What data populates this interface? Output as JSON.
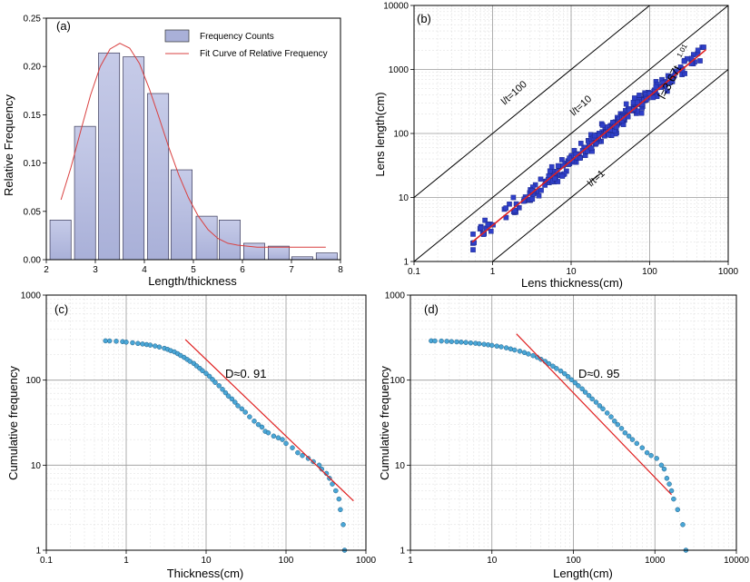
{
  "chart_data": [
    {
      "panel_label": "(a)",
      "type": "bar",
      "xlabel": "Length/thickness",
      "ylabel": "Relative Frequency",
      "xlim": [
        2,
        8
      ],
      "ylim": [
        0,
        0.25
      ],
      "x_ticks": [
        "2",
        "3",
        "4",
        "5",
        "6",
        "7",
        "8"
      ],
      "y_ticks": [
        "0.00",
        "0.05",
        "0.10",
        "0.15",
        "0.20",
        "0.25"
      ],
      "bar_width": 0.43,
      "bar_color": "#a9b0d8",
      "curve_color": "#d94040",
      "legend_position": "top-right",
      "series": [
        {
          "name": "Frequency Counts",
          "type": "bar",
          "x": [
            2.29,
            2.79,
            3.28,
            3.78,
            4.28,
            4.76,
            5.27,
            5.74,
            6.24,
            6.74,
            7.22,
            7.72
          ],
          "values": [
            0.041,
            0.138,
            0.214,
            0.21,
            0.172,
            0.093,
            0.045,
            0.041,
            0.017,
            0.014,
            0.003,
            0.007
          ]
        },
        {
          "name": "Fit Curve of Relative Frequency",
          "type": "line",
          "x": [
            2.3,
            2.5,
            2.7,
            2.9,
            3.1,
            3.3,
            3.5,
            3.7,
            3.9,
            4.1,
            4.3,
            4.5,
            4.7,
            4.9,
            5.1,
            5.3,
            5.5,
            5.7,
            5.9,
            6.1,
            6.3,
            6.5,
            6.8,
            7.1,
            7.4,
            7.7
          ],
          "values": [
            0.062,
            0.095,
            0.133,
            0.17,
            0.2,
            0.218,
            0.224,
            0.219,
            0.203,
            0.177,
            0.147,
            0.116,
            0.088,
            0.064,
            0.045,
            0.031,
            0.022,
            0.017,
            0.015,
            0.014,
            0.013,
            0.013,
            0.013,
            0.013,
            0.013,
            0.013
          ]
        }
      ]
    },
    {
      "panel_label": "(b)",
      "type": "scatter",
      "xscale": "log",
      "yscale": "log",
      "xlabel": "Lens thickness(cm)",
      "ylabel": "Lens length(cm)",
      "xlim": [
        0.1,
        1000
      ],
      "ylim": [
        1,
        10000
      ],
      "x_ticks": [
        "0.1",
        "1",
        "10",
        "100",
        "1000"
      ],
      "y_ticks": [
        "1",
        "10",
        "100",
        "1000",
        "10000"
      ],
      "grid": true,
      "marker_color": "#2f3fc8",
      "fit_color": "#e02020",
      "reference_lines": [
        {
          "label": "l/t=100",
          "ratio": 100
        },
        {
          "label": "l/t=10",
          "ratio": 10
        },
        {
          "label": "l/t=1",
          "ratio": 1
        }
      ],
      "fit": {
        "equation_base": "l=3.67t",
        "equation_exp": "1.01",
        "coefficient": 3.67,
        "exponent": 1.01,
        "x_range": [
          0.55,
          520
        ]
      },
      "scatter_generator": {
        "n": 300,
        "x_log_range": [
          -0.25,
          2.72
        ],
        "log_scatter": 0.13
      }
    },
    {
      "panel_label": "(c)",
      "type": "scatter",
      "xscale": "log",
      "yscale": "log",
      "xlabel": "Thickness(cm)",
      "ylabel": "Cumulative frequency",
      "xlim": [
        0.1,
        1000
      ],
      "ylim": [
        1,
        1000
      ],
      "x_ticks": [
        "0.1",
        "1",
        "10",
        "100",
        "1000"
      ],
      "y_ticks": [
        "1",
        "10",
        "100",
        "1000"
      ],
      "grid": true,
      "marker_color": "#4aa6d6",
      "fit_color": "#e02020",
      "annotation": "D≈0. 91",
      "fit": {
        "x": [
          5.5,
          700
        ],
        "y": [
          300,
          3.8
        ]
      },
      "points": [
        [
          0.55,
          290
        ],
        [
          0.62,
          289
        ],
        [
          0.75,
          287
        ],
        [
          0.9,
          283
        ],
        [
          1.0,
          280
        ],
        [
          1.2,
          275
        ],
        [
          1.4,
          270
        ],
        [
          1.6,
          266
        ],
        [
          1.8,
          262
        ],
        [
          2.0,
          258
        ],
        [
          2.3,
          252
        ],
        [
          2.6,
          245
        ],
        [
          3.0,
          237
        ],
        [
          3.3,
          230
        ],
        [
          3.6,
          222
        ],
        [
          4.0,
          215
        ],
        [
          4.4,
          205
        ],
        [
          4.8,
          195
        ],
        [
          5.3,
          185
        ],
        [
          5.8,
          175
        ],
        [
          6.3,
          166
        ],
        [
          7.0,
          157
        ],
        [
          7.6,
          147
        ],
        [
          8.3,
          138
        ],
        [
          9.0,
          129
        ],
        [
          10,
          120
        ],
        [
          11,
          111
        ],
        [
          12,
          102
        ],
        [
          13,
          94
        ],
        [
          14.5,
          86
        ],
        [
          16,
          78
        ],
        [
          17.5,
          71
        ],
        [
          19,
          65
        ],
        [
          21,
          60
        ],
        [
          23,
          55
        ],
        [
          25,
          50
        ],
        [
          28,
          46
        ],
        [
          31,
          42
        ],
        [
          35,
          37
        ],
        [
          40,
          33
        ],
        [
          45,
          30
        ],
        [
          50,
          28
        ],
        [
          55,
          25
        ],
        [
          60,
          24
        ],
        [
          70,
          22
        ],
        [
          80,
          21
        ],
        [
          90,
          20
        ],
        [
          100,
          18
        ],
        [
          120,
          16
        ],
        [
          140,
          14
        ],
        [
          160,
          13
        ],
        [
          190,
          12
        ],
        [
          220,
          11
        ],
        [
          260,
          10
        ],
        [
          280,
          9
        ],
        [
          320,
          8
        ],
        [
          350,
          7
        ],
        [
          380,
          6
        ],
        [
          420,
          5
        ],
        [
          460,
          4
        ],
        [
          480,
          3
        ],
        [
          520,
          2
        ],
        [
          540,
          1
        ]
      ]
    },
    {
      "panel_label": "(d)",
      "type": "scatter",
      "xscale": "log",
      "yscale": "log",
      "xlabel": "Length(cm)",
      "ylabel": "Cumulative frequency",
      "xlim": [
        1,
        10000
      ],
      "ylim": [
        1,
        1000
      ],
      "x_ticks": [
        "1",
        "10",
        "100",
        "1000",
        "10000"
      ],
      "y_ticks": [
        "1",
        "10",
        "100",
        "1000"
      ],
      "grid": true,
      "marker_color": "#4aa6d6",
      "fit_color": "#e02020",
      "annotation": "D≈0. 95",
      "fit": {
        "x": [
          20,
          1600
        ],
        "y": [
          350,
          4.5
        ]
      },
      "points": [
        [
          1.8,
          290
        ],
        [
          2.0,
          289
        ],
        [
          2.4,
          288
        ],
        [
          2.8,
          286
        ],
        [
          3.2,
          284
        ],
        [
          3.7,
          282
        ],
        [
          4.2,
          280
        ],
        [
          4.8,
          277
        ],
        [
          5.5,
          274
        ],
        [
          6.3,
          271
        ],
        [
          7,
          268
        ],
        [
          8,
          264
        ],
        [
          9,
          260
        ],
        [
          10,
          256
        ],
        [
          11.5,
          251
        ],
        [
          13,
          246
        ],
        [
          15,
          240
        ],
        [
          17,
          233
        ],
        [
          19,
          226
        ],
        [
          22,
          219
        ],
        [
          25,
          211
        ],
        [
          28,
          203
        ],
        [
          32,
          194
        ],
        [
          36,
          185
        ],
        [
          40,
          176
        ],
        [
          45,
          166
        ],
        [
          50,
          156
        ],
        [
          56,
          146
        ],
        [
          62,
          137
        ],
        [
          70,
          128
        ],
        [
          78,
          119
        ],
        [
          86,
          110
        ],
        [
          95,
          101
        ],
        [
          105,
          93
        ],
        [
          115,
          86
        ],
        [
          128,
          79
        ],
        [
          140,
          72
        ],
        [
          155,
          66
        ],
        [
          170,
          60
        ],
        [
          190,
          55
        ],
        [
          210,
          50
        ],
        [
          230,
          46
        ],
        [
          260,
          41
        ],
        [
          290,
          37
        ],
        [
          320,
          33
        ],
        [
          350,
          30
        ],
        [
          390,
          27
        ],
        [
          430,
          24
        ],
        [
          480,
          22
        ],
        [
          530,
          20
        ],
        [
          600,
          18
        ],
        [
          700,
          16
        ],
        [
          800,
          14
        ],
        [
          900,
          13
        ],
        [
          1050,
          12
        ],
        [
          1200,
          10
        ],
        [
          1300,
          9
        ],
        [
          1400,
          7
        ],
        [
          1500,
          6
        ],
        [
          1600,
          5
        ],
        [
          1700,
          4
        ],
        [
          1900,
          3
        ],
        [
          2200,
          2
        ],
        [
          2400,
          1
        ]
      ]
    }
  ]
}
